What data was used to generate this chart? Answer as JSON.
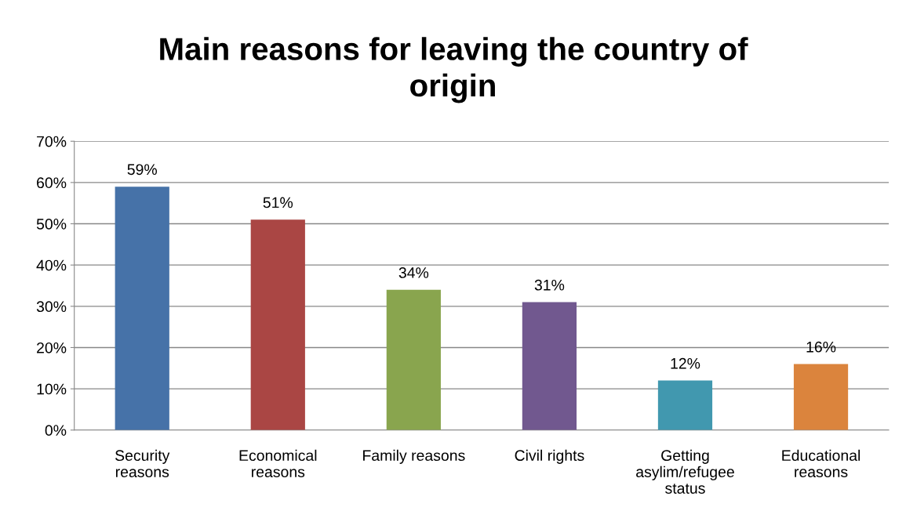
{
  "chart_data": {
    "type": "bar",
    "title": "Main reasons for leaving the country of\norigin",
    "categories": [
      "Security\nreasons",
      "Economical\nreasons",
      "Family reasons",
      "Civil rights",
      "Getting\nasylim/refugee\nstatus",
      "Educational\nreasons"
    ],
    "values": [
      59,
      51,
      34,
      31,
      12,
      16
    ],
    "colors": [
      "#4672a8",
      "#aa4644",
      "#89a54e",
      "#71588f",
      "#4198af",
      "#db843d"
    ],
    "value_labels": [
      "59%",
      "51%",
      "34%",
      "31%",
      "12%",
      "16%"
    ],
    "ylim": [
      0,
      70
    ],
    "yticks": [
      {
        "value": 0,
        "label": "0%"
      },
      {
        "value": 10,
        "label": "10%"
      },
      {
        "value": 20,
        "label": "20%"
      },
      {
        "value": 30,
        "label": "30%"
      },
      {
        "value": 40,
        "label": "40%"
      },
      {
        "value": 50,
        "label": "50%"
      },
      {
        "value": 60,
        "label": "60%"
      },
      {
        "value": 70,
        "label": "70%"
      }
    ],
    "grid": "y",
    "legend": false
  }
}
